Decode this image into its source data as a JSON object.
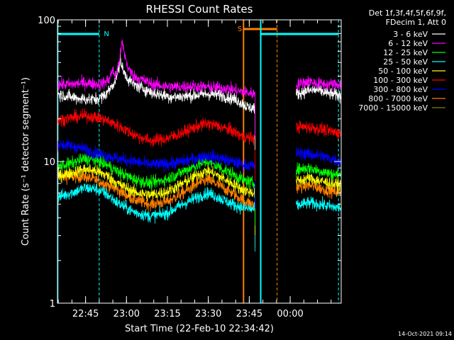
{
  "chart_data": {
    "type": "line",
    "title": "RHESSI Count Rates",
    "xlabel": "Start Time (22-Feb-10 22:34:42)",
    "ylabel": "Count Rate (s⁻¹ detector segment⁻¹)",
    "yscale": "log",
    "ylim": [
      1,
      100
    ],
    "xlim_minutes": [
      0,
      104
    ],
    "x_unit": "minutes since 22:34:42",
    "xticks": [
      {
        "minute": 10.3,
        "label": "22:45"
      },
      {
        "minute": 25.3,
        "label": "23:00"
      },
      {
        "minute": 40.3,
        "label": "23:15"
      },
      {
        "minute": 55.3,
        "label": "23:30"
      },
      {
        "minute": 70.3,
        "label": "23:45"
      },
      {
        "minute": 85.3,
        "label": "00:00"
      }
    ],
    "yticks": [
      {
        "value": 1,
        "label": "1"
      },
      {
        "value": 10,
        "label": "10"
      },
      {
        "value": 100,
        "label": "100"
      }
    ],
    "legend_header": [
      "Det 1f,3f,4f,5f,6f,9f,",
      "FDecim 1, Att 0"
    ],
    "timestamp": "14-Oct-2021 09:14",
    "data_gap_minutes": [
      72.4,
      87.5
    ],
    "series": [
      {
        "name": "3 - 6 keV",
        "color": "#ffffff",
        "points": [
          [
            0,
            30
          ],
          [
            5,
            28.5
          ],
          [
            10,
            27.5
          ],
          [
            14,
            27.5
          ],
          [
            17,
            29
          ],
          [
            19,
            32
          ],
          [
            21,
            37
          ],
          [
            22.5,
            45
          ],
          [
            23,
            54
          ],
          [
            24,
            44
          ],
          [
            26,
            38
          ],
          [
            28,
            35
          ],
          [
            35,
            30.5
          ],
          [
            42,
            28.5
          ],
          [
            48,
            29
          ],
          [
            55,
            30
          ],
          [
            60,
            29.5
          ],
          [
            66,
            27
          ],
          [
            70,
            24
          ],
          [
            72,
            24
          ],
          [
            88,
            30
          ],
          [
            91,
            31.5
          ],
          [
            95,
            32
          ],
          [
            100,
            30
          ],
          [
            104,
            29
          ]
        ]
      },
      {
        "name": "6 - 12 keV",
        "color": "#ff00ff",
        "points": [
          [
            0,
            35
          ],
          [
            5,
            35
          ],
          [
            10,
            36
          ],
          [
            16,
            35
          ],
          [
            19,
            38
          ],
          [
            20,
            44
          ],
          [
            21.5,
            40
          ],
          [
            23,
            56
          ],
          [
            23.7,
            70
          ],
          [
            24.5,
            58
          ],
          [
            26,
            45
          ],
          [
            28,
            40
          ],
          [
            35,
            35
          ],
          [
            42,
            33.5
          ],
          [
            48,
            34
          ],
          [
            55,
            33.5
          ],
          [
            62,
            33
          ],
          [
            66,
            31.5
          ],
          [
            70,
            30.5
          ],
          [
            72,
            30
          ],
          [
            88,
            35
          ],
          [
            92,
            37
          ],
          [
            95,
            35.5
          ],
          [
            100,
            35
          ],
          [
            104,
            35
          ]
        ]
      },
      {
        "name": "12 - 25 keV",
        "color": "#00ff00",
        "points": [
          [
            0,
            9.2
          ],
          [
            6,
            9.8
          ],
          [
            10,
            10.5
          ],
          [
            14,
            10.2
          ],
          [
            18,
            9.5
          ],
          [
            22,
            8.5
          ],
          [
            28,
            7.5
          ],
          [
            34,
            7
          ],
          [
            40,
            7.5
          ],
          [
            46,
            8.5
          ],
          [
            52,
            9.6
          ],
          [
            55,
            10
          ],
          [
            58,
            9.4
          ],
          [
            64,
            8.2
          ],
          [
            68,
            7.4
          ],
          [
            72,
            7
          ],
          [
            88,
            8.8
          ],
          [
            92,
            9
          ],
          [
            96,
            8.6
          ],
          [
            100,
            8.2
          ],
          [
            104,
            8
          ]
        ]
      },
      {
        "name": "25 - 50 keV",
        "color": "#00ffff",
        "points": [
          [
            0,
            5.6
          ],
          [
            6,
            6.1
          ],
          [
            10,
            6.5
          ],
          [
            14,
            6.4
          ],
          [
            18,
            5.9
          ],
          [
            22,
            5.1
          ],
          [
            28,
            4.4
          ],
          [
            34,
            4.1
          ],
          [
            40,
            4.3
          ],
          [
            46,
            5
          ],
          [
            52,
            5.7
          ],
          [
            55,
            6
          ],
          [
            58,
            5.7
          ],
          [
            64,
            5
          ],
          [
            68,
            4.7
          ],
          [
            72,
            4.6
          ],
          [
            88,
            4.9
          ],
          [
            92,
            5.1
          ],
          [
            96,
            5
          ],
          [
            100,
            4.8
          ],
          [
            104,
            4.7
          ]
        ]
      },
      {
        "name": "50 - 100 keV",
        "color": "#ffff00",
        "points": [
          [
            0,
            7.9
          ],
          [
            6,
            8.4
          ],
          [
            10,
            8.8
          ],
          [
            14,
            8.6
          ],
          [
            18,
            8
          ],
          [
            22,
            7
          ],
          [
            28,
            6.1
          ],
          [
            34,
            5.8
          ],
          [
            40,
            6.1
          ],
          [
            46,
            7
          ],
          [
            52,
            8.2
          ],
          [
            55,
            8.6
          ],
          [
            58,
            8.1
          ],
          [
            64,
            7
          ],
          [
            68,
            6.3
          ],
          [
            72,
            6
          ],
          [
            88,
            7.3
          ],
          [
            92,
            7.6
          ],
          [
            96,
            7.3
          ],
          [
            100,
            7
          ],
          [
            104,
            6.8
          ]
        ]
      },
      {
        "name": "100 - 300 keV",
        "color": "#ff0000",
        "points": [
          [
            0,
            19.5
          ],
          [
            6,
            20.5
          ],
          [
            10,
            21
          ],
          [
            14,
            20.5
          ],
          [
            18,
            19.5
          ],
          [
            22,
            18
          ],
          [
            28,
            15.5
          ],
          [
            34,
            14
          ],
          [
            40,
            14.5
          ],
          [
            46,
            16
          ],
          [
            52,
            18
          ],
          [
            55,
            18.5
          ],
          [
            58,
            18
          ],
          [
            64,
            16.5
          ],
          [
            68,
            15
          ],
          [
            72,
            14.5
          ],
          [
            88,
            17.5
          ],
          [
            92,
            17.5
          ],
          [
            96,
            17
          ],
          [
            100,
            16.3
          ],
          [
            104,
            15.8
          ]
        ]
      },
      {
        "name": "300 - 800 keV",
        "color": "#0000ff",
        "points": [
          [
            0,
            13.3
          ],
          [
            6,
            12.8
          ],
          [
            10,
            12.2
          ],
          [
            14,
            11.5
          ],
          [
            18,
            11
          ],
          [
            22,
            10.5
          ],
          [
            28,
            10
          ],
          [
            34,
            9.5
          ],
          [
            40,
            9.6
          ],
          [
            46,
            10
          ],
          [
            52,
            10.7
          ],
          [
            55,
            11
          ],
          [
            58,
            10.7
          ],
          [
            64,
            10
          ],
          [
            68,
            9.5
          ],
          [
            72,
            9.3
          ],
          [
            88,
            11.5
          ],
          [
            92,
            11.3
          ],
          [
            96,
            11
          ],
          [
            100,
            10.5
          ],
          [
            104,
            10
          ]
        ]
      },
      {
        "name": "800 - 7000 keV",
        "color": "#ff8000",
        "points": [
          [
            0,
            7.8
          ],
          [
            6,
            7.8
          ],
          [
            10,
            7.8
          ],
          [
            14,
            7.4
          ],
          [
            18,
            6.9
          ],
          [
            22,
            6.3
          ],
          [
            28,
            5.4
          ],
          [
            34,
            5
          ],
          [
            40,
            5.2
          ],
          [
            46,
            6
          ],
          [
            52,
            7.1
          ],
          [
            55,
            7.4
          ],
          [
            58,
            7
          ],
          [
            64,
            6
          ],
          [
            68,
            5.3
          ],
          [
            72,
            4.9
          ],
          [
            88,
            6.6
          ],
          [
            92,
            6.8
          ],
          [
            96,
            6.5
          ],
          [
            100,
            6.2
          ],
          [
            104,
            6
          ]
        ]
      },
      {
        "name": "7000 - 15000 keV",
        "color": "#808000",
        "points": []
      }
    ]
  }
}
